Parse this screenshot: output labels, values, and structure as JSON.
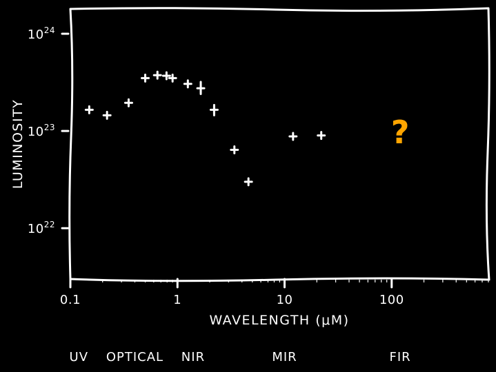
{
  "colors": {
    "background": "#000000",
    "foreground": "#ffffff",
    "annotation": "#ffa500"
  },
  "chart_data": {
    "type": "scatter",
    "title": "",
    "xlabel": "WAVELENGTH (μM)",
    "ylabel": "LUMINOSITY",
    "xscale": "log",
    "yscale": "log",
    "xlim": [
      0.1,
      800
    ],
    "ylim": [
      3e+21,
      1.8e+24
    ],
    "x_ticks": [
      {
        "value": 0.1,
        "label": "0.1"
      },
      {
        "value": 1,
        "label": "1"
      },
      {
        "value": 10,
        "label": "10"
      },
      {
        "value": 100,
        "label": "100"
      }
    ],
    "y_ticks": [
      {
        "value": 1e+22,
        "base": "10",
        "exp": "22"
      },
      {
        "value": 1e+23,
        "base": "10",
        "exp": "23"
      },
      {
        "value": 1e+24,
        "base": "10",
        "exp": "24"
      }
    ],
    "grid": false,
    "style": "xkcd",
    "marker": "plus",
    "points": [
      {
        "x": 0.15,
        "y": 1.65e+23
      },
      {
        "x": 0.22,
        "y": 1.45e+23
      },
      {
        "x": 0.35,
        "y": 1.95e+23
      },
      {
        "x": 0.5,
        "y": 3.5e+23
      },
      {
        "x": 0.65,
        "y": 3.75e+23
      },
      {
        "x": 0.79,
        "y": 3.7e+23
      },
      {
        "x": 0.9,
        "y": 3.5e+23
      },
      {
        "x": 1.25,
        "y": 3.05e+23
      },
      {
        "x": 1.65,
        "y": 2.75e+23,
        "yerr": [
          2.4e+23,
          3.2e+23
        ]
      },
      {
        "x": 2.2,
        "y": 1.65e+23,
        "yerr": [
          1.45e+23,
          1.85e+23
        ]
      },
      {
        "x": 3.4,
        "y": 6.4e+22
      },
      {
        "x": 4.6,
        "y": 3e+22
      },
      {
        "x": 12,
        "y": 8.8e+22
      },
      {
        "x": 22,
        "y": 9e+22
      }
    ],
    "annotations": [
      {
        "text": "?",
        "x": 120,
        "y": 1e+23,
        "color": "#ffa500"
      }
    ],
    "band_labels": [
      {
        "text": "UV",
        "x": 0.12
      },
      {
        "text": "OPTICAL",
        "x": 0.4
      },
      {
        "text": "NIR",
        "x": 1.4
      },
      {
        "text": "MIR",
        "x": 10
      },
      {
        "text": "FIR",
        "x": 120
      }
    ]
  }
}
